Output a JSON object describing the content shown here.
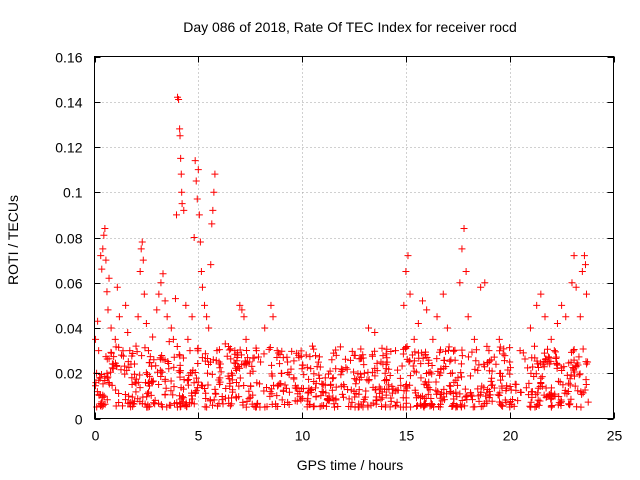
{
  "chart_data": {
    "type": "scatter",
    "title": "Day 086 of 2018, Rate Of TEC Index for receiver rocd",
    "xlabel": "GPS time / hours",
    "ylabel": "ROTI / TECUs",
    "xlim": [
      0,
      25
    ],
    "ylim": [
      0,
      0.16
    ],
    "x_ticks": [
      0,
      5,
      10,
      15,
      20,
      25
    ],
    "x_tick_labels": [
      "0",
      "5",
      "10",
      "15",
      "20",
      "25"
    ],
    "y_ticks": [
      0,
      0.02,
      0.04,
      0.06,
      0.08,
      0.1,
      0.12,
      0.14,
      0.16
    ],
    "y_tick_labels": [
      "0",
      "0.02",
      "0.04",
      "0.06",
      "0.08",
      "0.1",
      "0.12",
      "0.14",
      "0.16"
    ],
    "grid": true,
    "marker": "+",
    "color": "#ff0000",
    "series": [
      {
        "name": "ROTI",
        "points": [
          [
            0.05,
            0.035
          ],
          [
            0.1,
            0.02
          ],
          [
            0.15,
            0.043
          ],
          [
            0.2,
            0.03
          ],
          [
            0.25,
            0.018
          ],
          [
            0.3,
            0.072
          ],
          [
            0.35,
            0.066
          ],
          [
            0.4,
            0.075
          ],
          [
            0.45,
            0.081
          ],
          [
            0.5,
            0.084
          ],
          [
            0.55,
            0.07
          ],
          [
            0.6,
            0.056
          ],
          [
            0.65,
            0.048
          ],
          [
            0.7,
            0.062
          ],
          [
            0.8,
            0.04
          ],
          [
            0.9,
            0.022
          ],
          [
            1.0,
            0.035
          ],
          [
            1.1,
            0.058
          ],
          [
            1.2,
            0.045
          ],
          [
            1.3,
            0.028
          ],
          [
            1.5,
            0.05
          ],
          [
            1.6,
            0.038
          ],
          [
            1.7,
            0.03
          ],
          [
            1.8,
            0.018
          ],
          [
            2.0,
            0.032
          ],
          [
            2.1,
            0.045
          ],
          [
            2.2,
            0.065
          ],
          [
            2.25,
            0.075
          ],
          [
            2.3,
            0.078
          ],
          [
            2.35,
            0.07
          ],
          [
            2.4,
            0.055
          ],
          [
            2.5,
            0.042
          ],
          [
            2.6,
            0.03
          ],
          [
            2.8,
            0.036
          ],
          [
            3.0,
            0.048
          ],
          [
            3.1,
            0.055
          ],
          [
            3.2,
            0.06
          ],
          [
            3.3,
            0.064
          ],
          [
            3.4,
            0.052
          ],
          [
            3.5,
            0.045
          ],
          [
            3.6,
            0.034
          ],
          [
            3.7,
            0.04
          ],
          [
            3.8,
            0.035
          ],
          [
            3.9,
            0.053
          ],
          [
            3.95,
            0.09
          ],
          [
            4.0,
            0.142
          ],
          [
            4.05,
            0.141
          ],
          [
            4.1,
            0.128
          ],
          [
            4.12,
            0.125
          ],
          [
            4.15,
            0.115
          ],
          [
            4.18,
            0.108
          ],
          [
            4.2,
            0.1
          ],
          [
            4.22,
            0.095
          ],
          [
            4.3,
            0.092
          ],
          [
            4.4,
            0.05
          ],
          [
            4.5,
            0.035
          ],
          [
            4.6,
            0.03
          ],
          [
            4.7,
            0.045
          ],
          [
            4.8,
            0.08
          ],
          [
            4.85,
            0.114
          ],
          [
            4.9,
            0.105
          ],
          [
            4.95,
            0.097
          ],
          [
            5.0,
            0.11
          ],
          [
            5.05,
            0.09
          ],
          [
            5.1,
            0.078
          ],
          [
            5.15,
            0.065
          ],
          [
            5.2,
            0.058
          ],
          [
            5.3,
            0.05
          ],
          [
            5.4,
            0.045
          ],
          [
            5.5,
            0.04
          ],
          [
            5.6,
            0.068
          ],
          [
            5.65,
            0.086
          ],
          [
            5.7,
            0.092
          ],
          [
            5.75,
            0.1
          ],
          [
            5.8,
            0.108
          ],
          [
            5.9,
            0.03
          ],
          [
            6.0,
            0.025
          ],
          [
            6.3,
            0.033
          ],
          [
            6.6,
            0.02
          ],
          [
            6.9,
            0.028
          ],
          [
            7.0,
            0.05
          ],
          [
            7.1,
            0.048
          ],
          [
            7.2,
            0.045
          ],
          [
            7.3,
            0.035
          ],
          [
            7.5,
            0.02
          ],
          [
            7.8,
            0.03
          ],
          [
            8.0,
            0.025
          ],
          [
            8.2,
            0.04
          ],
          [
            8.5,
            0.05
          ],
          [
            8.6,
            0.045
          ],
          [
            8.8,
            0.03
          ],
          [
            9.0,
            0.02
          ],
          [
            9.3,
            0.025
          ],
          [
            9.6,
            0.018
          ],
          [
            10.0,
            0.022
          ],
          [
            10.5,
            0.032
          ],
          [
            11.0,
            0.015
          ],
          [
            11.5,
            0.018
          ],
          [
            12.0,
            0.015
          ],
          [
            12.5,
            0.012
          ],
          [
            13.0,
            0.02
          ],
          [
            13.2,
            0.04
          ],
          [
            13.5,
            0.038
          ],
          [
            13.8,
            0.025
          ],
          [
            14.0,
            0.02
          ],
          [
            14.5,
            0.03
          ],
          [
            14.9,
            0.05
          ],
          [
            15.0,
            0.065
          ],
          [
            15.1,
            0.072
          ],
          [
            15.2,
            0.055
          ],
          [
            15.4,
            0.035
          ],
          [
            15.6,
            0.042
          ],
          [
            15.8,
            0.052
          ],
          [
            16.0,
            0.048
          ],
          [
            16.3,
            0.035
          ],
          [
            16.5,
            0.045
          ],
          [
            16.8,
            0.055
          ],
          [
            17.0,
            0.04
          ],
          [
            17.3,
            0.03
          ],
          [
            17.6,
            0.06
          ],
          [
            17.7,
            0.075
          ],
          [
            17.8,
            0.084
          ],
          [
            17.9,
            0.065
          ],
          [
            18.0,
            0.045
          ],
          [
            18.3,
            0.035
          ],
          [
            18.6,
            0.058
          ],
          [
            18.8,
            0.06
          ],
          [
            19.0,
            0.03
          ],
          [
            19.5,
            0.035
          ],
          [
            20.0,
            0.025
          ],
          [
            20.5,
            0.03
          ],
          [
            21.0,
            0.04
          ],
          [
            21.3,
            0.05
          ],
          [
            21.5,
            0.055
          ],
          [
            21.7,
            0.045
          ],
          [
            22.0,
            0.035
          ],
          [
            22.3,
            0.042
          ],
          [
            22.5,
            0.05
          ],
          [
            22.7,
            0.045
          ],
          [
            23.0,
            0.06
          ],
          [
            23.1,
            0.072
          ],
          [
            23.2,
            0.058
          ],
          [
            23.4,
            0.045
          ],
          [
            23.5,
            0.065
          ],
          [
            23.6,
            0.072
          ],
          [
            23.65,
            0.068
          ],
          [
            23.7,
            0.055
          ],
          [
            23.75,
            0.025
          ]
        ],
        "baseline_band": {
          "x_range": [
            0,
            23.8
          ],
          "y_min": 0.005,
          "y_max": 0.032,
          "density_per_hour": 40
        }
      }
    ]
  }
}
